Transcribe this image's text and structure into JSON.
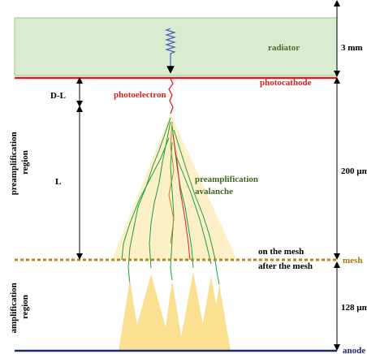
{
  "radiator": {
    "label": "radiator",
    "thickness": "3 mm"
  },
  "photocathode": "photocathode",
  "photoelectron": "photoelectron",
  "drift": {
    "gap_label": "D-L",
    "length_label": "L",
    "thickness": "200 µm"
  },
  "preamplification_region": [
    "preamplification",
    "region"
  ],
  "preamplification_avalanche": [
    "preamplification",
    "avalanche"
  ],
  "mesh": {
    "label": "mesh",
    "on": "on the mesh",
    "after": "after the mesh"
  },
  "amplification_region": [
    "amplification",
    "region"
  ],
  "amplification_thickness": "128 µm",
  "anode": "anode"
}
